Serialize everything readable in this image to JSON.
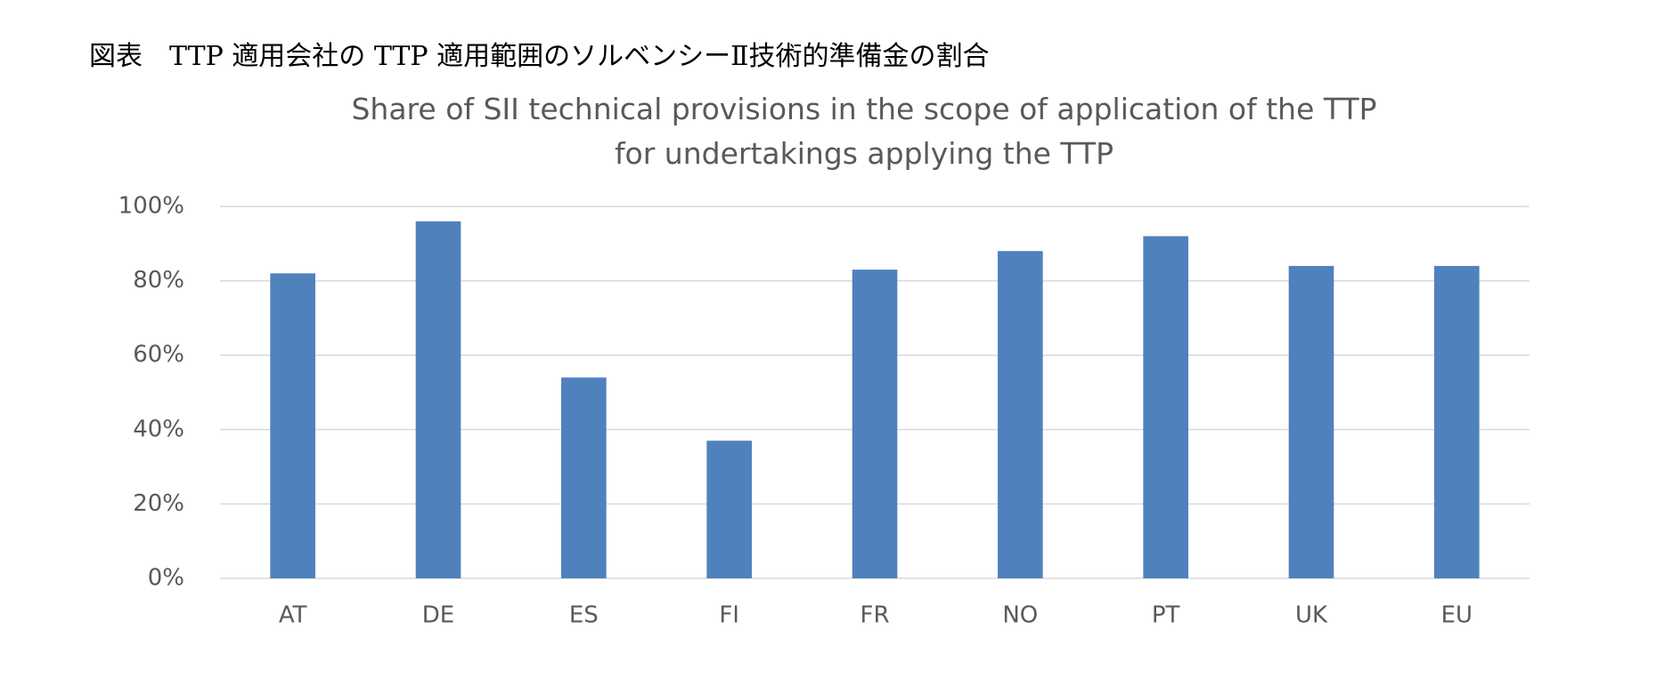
{
  "header": {
    "title": "図表　TTP 適用会社の TTP 適用範囲のソルベンシーⅡ技術的準備金の割合"
  },
  "chart_data": {
    "type": "bar",
    "title": "Share of SII technical provisions in the scope of application of the TTP for undertakings applying the TTP",
    "categories": [
      "AT",
      "DE",
      "ES",
      "FI",
      "FR",
      "NO",
      "PT",
      "UK",
      "EU"
    ],
    "values": [
      82,
      96,
      54,
      37,
      83,
      88,
      92,
      84,
      84
    ],
    "color": "#4f81bd",
    "ylim": [
      0,
      100
    ],
    "yticks": [
      {
        "value": 0,
        "label": "0%"
      },
      {
        "value": 20,
        "label": "20%"
      },
      {
        "value": 40,
        "label": "40%"
      },
      {
        "value": 60,
        "label": "60%"
      },
      {
        "value": 80,
        "label": "80%"
      },
      {
        "value": 100,
        "label": "100%"
      }
    ],
    "grid": true
  }
}
